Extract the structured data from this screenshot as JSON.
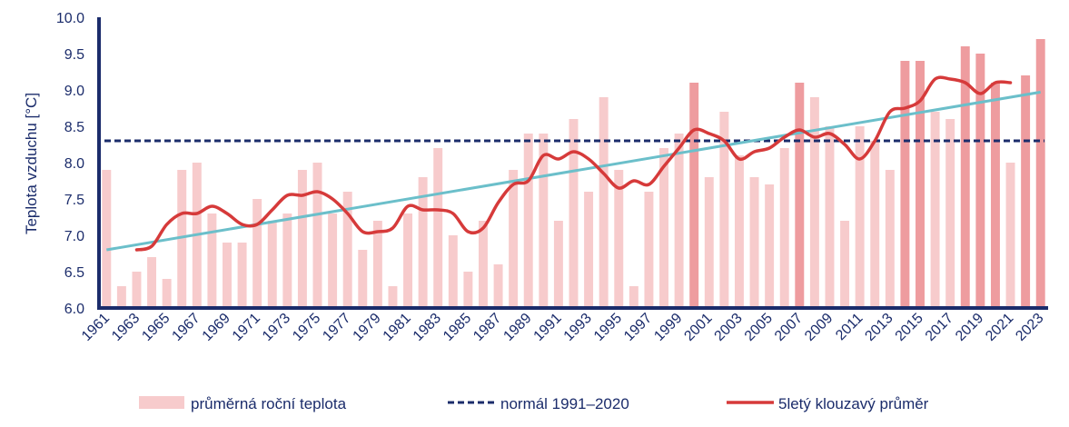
{
  "colors": {
    "bar": "#f7cbcc",
    "bar_highlight": "#ee9c9f",
    "normal": "#1b2c6b",
    "moving_avg": "#d63a3a",
    "trend": "#6bbfca",
    "axis": "#1b2c6b",
    "text": "#1b2c6b"
  },
  "chart_data": {
    "type": "bar",
    "ylabel": "Teplota vzduchu [°C]",
    "ylim": [
      6.0,
      10.0
    ],
    "yticks": [
      "6.0",
      "6.5",
      "7.0",
      "7.5",
      "8.0",
      "8.5",
      "9.0",
      "9.5",
      "10.0"
    ],
    "grid": false,
    "legend_position": "bottom",
    "x": [
      1961,
      1962,
      1963,
      1964,
      1965,
      1966,
      1967,
      1968,
      1969,
      1970,
      1971,
      1972,
      1973,
      1974,
      1975,
      1976,
      1977,
      1978,
      1979,
      1980,
      1981,
      1982,
      1983,
      1984,
      1985,
      1986,
      1987,
      1988,
      1989,
      1990,
      1991,
      1992,
      1993,
      1994,
      1995,
      1996,
      1997,
      1998,
      1999,
      2000,
      2001,
      2002,
      2003,
      2004,
      2005,
      2006,
      2007,
      2008,
      2009,
      2010,
      2011,
      2012,
      2013,
      2014,
      2015,
      2016,
      2017,
      2018,
      2019,
      2020,
      2021,
      2022,
      2023
    ],
    "xtick_labels": [
      "1961",
      "1963",
      "1965",
      "1967",
      "1969",
      "1971",
      "1973",
      "1975",
      "1977",
      "1979",
      "1981",
      "1983",
      "1985",
      "1987",
      "1989",
      "1991",
      "1993",
      "1995",
      "1997",
      "1999",
      "2001",
      "2003",
      "2005",
      "2007",
      "2009",
      "2011",
      "2013",
      "2015",
      "2017",
      "2019",
      "2021",
      "2023"
    ],
    "series": [
      {
        "name": "průměrná roční teplota",
        "type": "bar",
        "values": [
          7.9,
          6.3,
          6.5,
          6.7,
          6.4,
          7.9,
          8.0,
          7.3,
          6.9,
          6.9,
          7.5,
          7.2,
          7.3,
          7.9,
          8.0,
          7.3,
          7.6,
          6.8,
          7.2,
          6.3,
          7.3,
          7.8,
          8.2,
          7.0,
          6.5,
          7.2,
          6.6,
          7.9,
          8.4,
          8.4,
          7.2,
          8.6,
          7.6,
          8.9,
          7.9,
          6.3,
          7.6,
          8.2,
          8.4,
          9.1,
          7.8,
          8.7,
          8.1,
          7.8,
          7.7,
          8.2,
          9.1,
          8.9,
          8.5,
          7.2,
          8.5,
          8.3,
          7.9,
          9.4,
          9.4,
          8.7,
          8.6,
          9.6,
          9.5,
          9.1,
          8.0,
          9.2,
          9.7
        ],
        "highlighted": [
          2000,
          2007,
          2014,
          2015,
          2018,
          2019,
          2020,
          2022,
          2023
        ]
      },
      {
        "name": "normál 1991–2020",
        "type": "line",
        "value": 8.3
      },
      {
        "name": "5letý klouzavý průměr",
        "type": "line",
        "x": [
          1963,
          1964,
          1965,
          1966,
          1967,
          1968,
          1969,
          1970,
          1971,
          1972,
          1973,
          1974,
          1975,
          1976,
          1977,
          1978,
          1979,
          1980,
          1981,
          1982,
          1983,
          1984,
          1985,
          1986,
          1987,
          1988,
          1989,
          1990,
          1991,
          1992,
          1993,
          1994,
          1995,
          1996,
          1997,
          1998,
          1999,
          2000,
          2001,
          2002,
          2003,
          2004,
          2005,
          2006,
          2007,
          2008,
          2009,
          2010,
          2011,
          2012,
          2013,
          2014,
          2015,
          2016,
          2017,
          2018,
          2019,
          2020,
          2021
        ],
        "values": [
          6.8,
          6.85,
          7.15,
          7.3,
          7.3,
          7.4,
          7.3,
          7.15,
          7.15,
          7.35,
          7.55,
          7.55,
          7.6,
          7.5,
          7.3,
          7.05,
          7.05,
          7.1,
          7.4,
          7.35,
          7.35,
          7.3,
          7.05,
          7.1,
          7.45,
          7.7,
          7.75,
          8.1,
          8.05,
          8.15,
          8.05,
          7.85,
          7.65,
          7.75,
          7.7,
          7.95,
          8.2,
          8.45,
          8.4,
          8.3,
          8.05,
          8.15,
          8.2,
          8.35,
          8.45,
          8.35,
          8.4,
          8.25,
          8.05,
          8.3,
          8.7,
          8.75,
          8.85,
          9.15,
          9.15,
          9.1,
          8.95,
          9.1,
          9.1
        ]
      },
      {
        "name": "",
        "type": "trend",
        "x": [
          1961,
          2023
        ],
        "values": [
          6.8,
          8.97
        ]
      }
    ]
  },
  "legend": {
    "items": [
      {
        "label": "průměrná roční teplota"
      },
      {
        "label": "normál 1991–2020"
      },
      {
        "label": "5letý klouzavý průměr"
      }
    ]
  }
}
